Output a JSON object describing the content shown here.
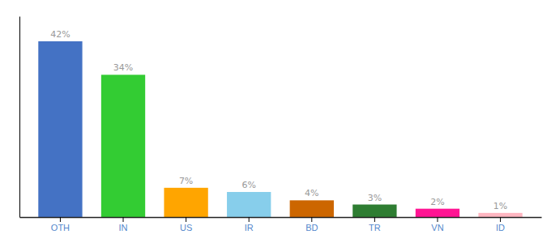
{
  "chart_data": {
    "type": "bar",
    "categories": [
      "OTH",
      "IN",
      "US",
      "IR",
      "BD",
      "TR",
      "VN",
      "ID"
    ],
    "values": [
      42,
      34,
      7,
      6,
      4,
      3,
      2,
      1
    ],
    "value_labels": [
      "42%",
      "34%",
      "7%",
      "6%",
      "4%",
      "3%",
      "2%",
      "1%"
    ],
    "colors": [
      "#4472C4",
      "#33CC33",
      "#FFA500",
      "#87CEEB",
      "#CC6600",
      "#2E7D32",
      "#FF1493",
      "#FFB6C1"
    ],
    "ylim": [
      0,
      48
    ],
    "data_labels": true,
    "tick_labels": "x",
    "grid": false
  }
}
